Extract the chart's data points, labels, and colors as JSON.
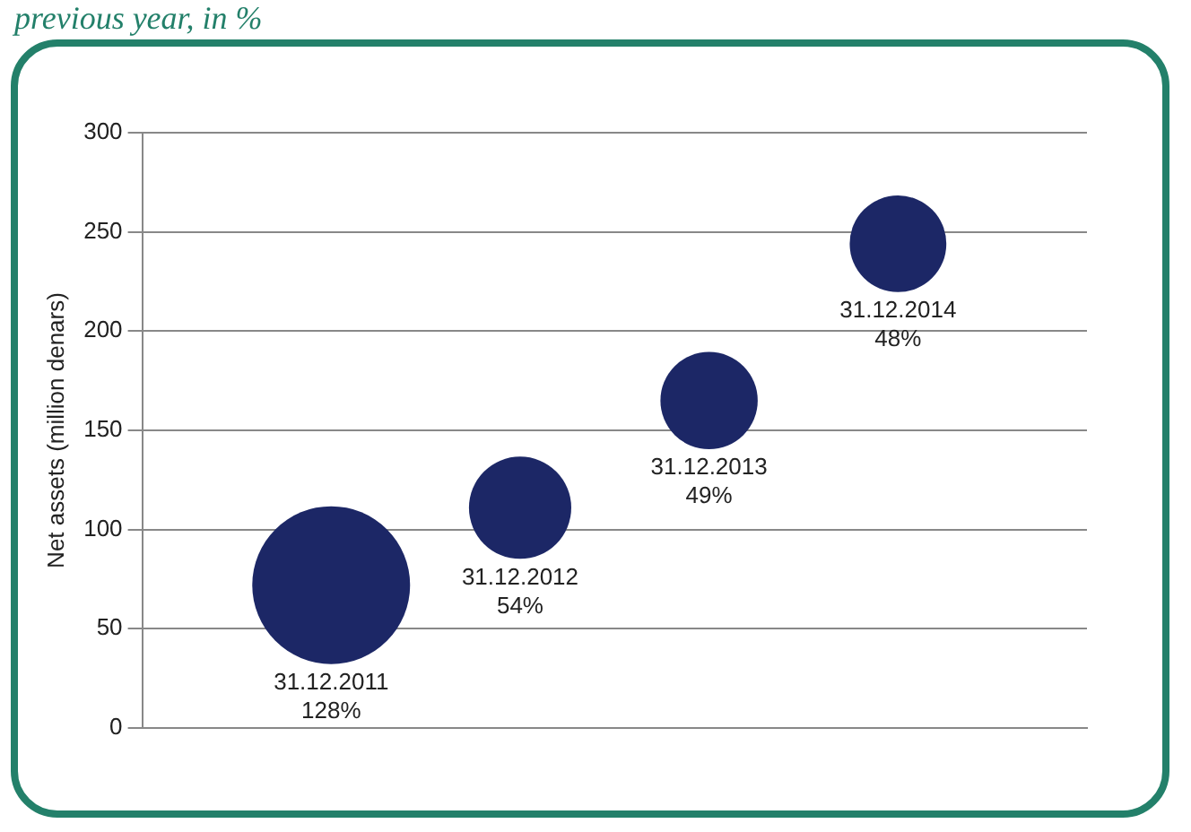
{
  "chart_data": {
    "type": "bubble",
    "title": "previous year, in %",
    "ylabel": "Net assets (million denars)",
    "categories": [
      "31.12.2011",
      "31.12.2012",
      "31.12.2013",
      "31.12.2014"
    ],
    "values": [
      72,
      111,
      165,
      244
    ],
    "sizes": [
      1,
      0.42,
      0.38,
      0.375
    ],
    "annotations": [
      "128%",
      "54%",
      "49%",
      "48%"
    ],
    "color": "#1c2766",
    "ylim": [
      0,
      300
    ],
    "yticks": [
      0,
      50,
      100,
      150,
      200,
      250,
      300
    ],
    "grid": "y",
    "legend": false
  }
}
